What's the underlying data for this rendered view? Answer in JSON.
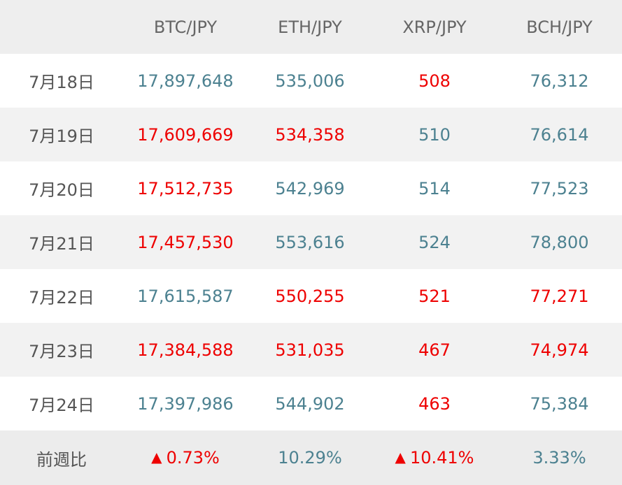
{
  "header": {
    "blank": "",
    "columns": [
      "BTC/JPY",
      "ETH/JPY",
      "XRP/JPY",
      "BCH/JPY"
    ]
  },
  "rows": [
    {
      "date": "7月18日",
      "cells": [
        {
          "value": "17,897,648",
          "color": "teal"
        },
        {
          "value": "535,006",
          "color": "teal"
        },
        {
          "value": "508",
          "color": "red"
        },
        {
          "value": "76,312",
          "color": "teal"
        }
      ]
    },
    {
      "date": "7月19日",
      "cells": [
        {
          "value": "17,609,669",
          "color": "red"
        },
        {
          "value": "534,358",
          "color": "red"
        },
        {
          "value": "510",
          "color": "teal"
        },
        {
          "value": "76,614",
          "color": "teal"
        }
      ]
    },
    {
      "date": "7月20日",
      "cells": [
        {
          "value": "17,512,735",
          "color": "red"
        },
        {
          "value": "542,969",
          "color": "teal"
        },
        {
          "value": "514",
          "color": "teal"
        },
        {
          "value": "77,523",
          "color": "teal"
        }
      ]
    },
    {
      "date": "7月21日",
      "cells": [
        {
          "value": "17,457,530",
          "color": "red"
        },
        {
          "value": "553,616",
          "color": "teal"
        },
        {
          "value": "524",
          "color": "teal"
        },
        {
          "value": "78,800",
          "color": "teal"
        }
      ]
    },
    {
      "date": "7月22日",
      "cells": [
        {
          "value": "17,615,587",
          "color": "teal"
        },
        {
          "value": "550,255",
          "color": "red"
        },
        {
          "value": "521",
          "color": "red"
        },
        {
          "value": "77,271",
          "color": "red"
        }
      ]
    },
    {
      "date": "7月23日",
      "cells": [
        {
          "value": "17,384,588",
          "color": "red"
        },
        {
          "value": "531,035",
          "color": "red"
        },
        {
          "value": "467",
          "color": "red"
        },
        {
          "value": "74,974",
          "color": "red"
        }
      ]
    },
    {
      "date": "7月24日",
      "cells": [
        {
          "value": "17,397,986",
          "color": "teal"
        },
        {
          "value": "544,902",
          "color": "teal"
        },
        {
          "value": "463",
          "color": "red"
        },
        {
          "value": "75,384",
          "color": "teal"
        }
      ]
    }
  ],
  "footer": {
    "label": "前週比",
    "cells": [
      {
        "value": "0.73%",
        "color": "red",
        "icon": "triangle-down-icon",
        "glyph": "▲"
      },
      {
        "value": "10.29%",
        "color": "teal",
        "icon": "",
        "glyph": ""
      },
      {
        "value": "10.41%",
        "color": "red",
        "icon": "triangle-down-icon",
        "glyph": "▲"
      },
      {
        "value": "3.33%",
        "color": "teal",
        "icon": "",
        "glyph": ""
      }
    ]
  },
  "colors": {
    "teal": "#4c8190",
    "red": "#ee0000",
    "header_bg": "#eeeeee",
    "stripe_bg": "#f2f2f2",
    "footer_bg": "#ececec"
  }
}
